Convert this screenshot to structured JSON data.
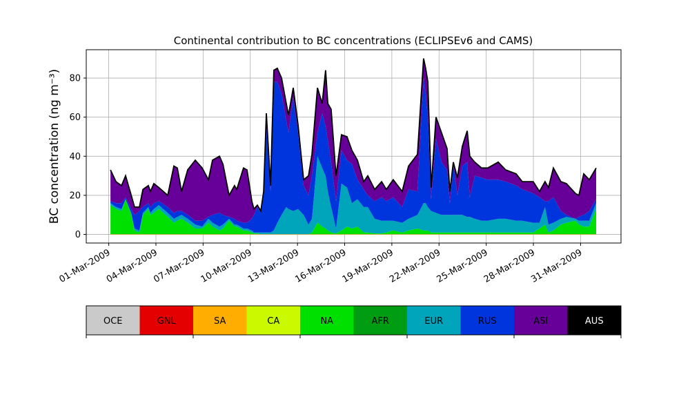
{
  "chart_data": {
    "type": "area",
    "stacked": true,
    "title": "Continental contribution to BC concentrations (ECLIPSEv6 and CAMS)",
    "ylabel": "BC concentration (ng m⁻³)",
    "xlabel": "",
    "x_unit": "days since 01-Mar-2009",
    "xlim": [
      -1.43,
      32.57
    ],
    "ylim": [
      -4.4,
      94.5
    ],
    "yticks": [
      0,
      20,
      40,
      60,
      80
    ],
    "xticks": [
      0,
      3,
      6,
      9,
      12,
      15,
      18,
      21,
      24,
      27,
      30
    ],
    "xtick_labels": [
      "01-Mar-2009",
      "04-Mar-2009",
      "07-Mar-2009",
      "10-Mar-2009",
      "13-Mar-2009",
      "16-Mar-2009",
      "19-Mar-2009",
      "22-Mar-2009",
      "25-Mar-2009",
      "28-Mar-2009",
      "31-Mar-2009"
    ],
    "grid": true,
    "x": [
      0.11,
      0.46,
      0.81,
      1.07,
      1.43,
      1.64,
      1.95,
      2.17,
      2.52,
      2.65,
      2.87,
      3.18,
      3.75,
      4.14,
      4.36,
      4.63,
      5.02,
      5.5,
      5.94,
      6.34,
      6.6,
      7.04,
      7.26,
      7.65,
      8.0,
      8.14,
      8.57,
      8.79,
      9.1,
      9.23,
      9.45,
      9.67,
      9.85,
      10.02,
      10.29,
      10.5,
      10.72,
      10.99,
      11.29,
      11.43,
      11.73,
      12.04,
      12.39,
      12.7,
      12.92,
      13.27,
      13.57,
      13.79,
      13.93,
      14.14,
      14.45,
      14.8,
      15.15,
      15.46,
      15.81,
      16.21,
      16.47,
      16.91,
      17.35,
      17.65,
      18.09,
      18.66,
      19.06,
      19.63,
      20.02,
      20.15,
      20.29,
      20.5,
      20.81,
      21.16,
      21.51,
      21.69,
      21.91,
      22.17,
      22.48,
      22.79,
      22.96,
      23.27,
      23.71,
      24.1,
      24.76,
      25.24,
      25.9,
      26.29,
      26.99,
      27.39,
      27.74,
      27.96,
      28.27,
      28.75,
      29.1,
      29.67,
      29.89,
      30.2,
      30.55,
      30.99
    ],
    "series": [
      {
        "name": "NA",
        "color": "#00e000",
        "values": [
          15,
          13,
          12,
          18,
          10,
          2,
          1,
          10,
          13,
          10,
          11,
          13,
          9,
          6,
          7,
          8,
          6,
          3,
          3,
          6,
          4,
          2,
          3,
          7,
          4,
          4,
          2,
          2,
          1,
          0.5,
          0.5,
          0,
          0,
          0,
          0,
          0,
          0,
          0,
          0,
          0,
          0,
          0,
          0,
          0,
          1,
          6,
          4,
          3,
          2,
          1,
          0.5,
          2,
          4,
          3,
          4,
          1,
          1,
          0.5,
          0.5,
          1,
          2,
          1,
          2,
          3,
          2,
          2,
          2,
          1,
          1,
          1,
          1,
          1,
          1,
          1,
          1,
          1,
          1,
          1,
          1,
          1,
          1,
          1,
          1,
          1,
          1,
          3,
          5,
          1,
          2,
          5,
          6,
          7,
          5,
          4,
          4,
          13
        ]
      },
      {
        "name": "EUR",
        "color": "#00a4bb",
        "values": [
          1,
          1,
          1,
          0,
          1,
          1,
          1,
          1,
          1,
          1,
          2,
          2,
          2,
          2,
          2,
          2,
          2,
          2,
          1,
          2,
          2,
          2,
          2,
          1,
          1,
          1,
          1,
          1,
          1,
          0.5,
          0.5,
          1,
          1,
          1,
          1,
          2,
          6,
          10,
          14,
          13,
          12,
          13,
          10,
          5,
          7,
          34,
          30,
          27,
          20,
          13,
          2.5,
          24,
          20,
          13,
          14,
          13,
          13,
          7.5,
          6.5,
          6,
          5,
          5,
          6,
          7,
          14,
          14,
          12,
          11,
          10,
          9,
          9,
          9,
          9,
          9,
          9,
          8,
          8,
          7,
          6,
          6,
          7,
          7,
          6,
          6,
          5,
          3,
          9,
          4,
          4,
          3,
          3,
          1,
          2,
          3,
          3,
          3
        ]
      },
      {
        "name": "RUS",
        "color": "#0035dd",
        "values": [
          1,
          2,
          3,
          1,
          2,
          7,
          10,
          3,
          2,
          3,
          3,
          2,
          3,
          3,
          3,
          2,
          2,
          2,
          3,
          1,
          4,
          7,
          5,
          1,
          3,
          2,
          3,
          3,
          6,
          9,
          13,
          10,
          19,
          54,
          21,
          76,
          72,
          62,
          44,
          39,
          58,
          39,
          15,
          15,
          22,
          12,
          28,
          25,
          26,
          23,
          14,
          17,
          14,
          20,
          10,
          9,
          6,
          9,
          12,
          10,
          12,
          8,
          15,
          12,
          64,
          56,
          46,
          6,
          38,
          27,
          23,
          6,
          26,
          10,
          25,
          28,
          10,
          22,
          22,
          21,
          20,
          19,
          18,
          16,
          15,
          13,
          3,
          12,
          13,
          4,
          1,
          0,
          2,
          3,
          5,
          2
        ]
      },
      {
        "name": "ASI",
        "color": "#670099",
        "values": [
          16,
          11,
          9,
          11,
          7,
          4,
          2,
          9,
          9,
          8,
          10,
          7,
          6,
          24,
          22,
          10,
          23,
          31,
          27,
          19,
          28,
          29,
          26,
          11,
          17,
          16,
          28,
          27,
          9,
          3,
          1,
          1,
          2,
          7,
          3,
          6,
          7,
          8,
          9,
          9,
          5,
          4,
          3,
          10,
          11,
          23,
          5,
          29,
          19,
          27,
          13,
          8,
          12,
          7,
          10,
          4,
          10,
          6,
          8,
          6,
          9,
          8,
          12,
          19,
          10,
          13,
          18,
          6,
          11,
          15,
          11,
          6,
          1,
          9,
          10,
          16,
          21,
          7,
          5,
          6,
          9,
          6,
          6,
          4,
          6,
          3,
          10,
          7,
          15,
          15,
          16,
          13,
          11,
          21,
          16,
          16
        ]
      }
    ],
    "colorbar": {
      "labels": [
        "OCE",
        "GNL",
        "SA",
        "CA",
        "NA",
        "AFR",
        "EUR",
        "RUS",
        "ASI",
        "AUS"
      ],
      "colors": [
        "#cacaca",
        "#e40000",
        "#ffae00",
        "#cbfa00",
        "#00e000",
        "#009c11",
        "#00a4bb",
        "#0035dd",
        "#670099",
        "#000000"
      ],
      "label_colors": [
        "#000",
        "#000",
        "#000",
        "#000",
        "#000",
        "#000",
        "#000",
        "#000",
        "#000",
        "#fff"
      ]
    }
  }
}
